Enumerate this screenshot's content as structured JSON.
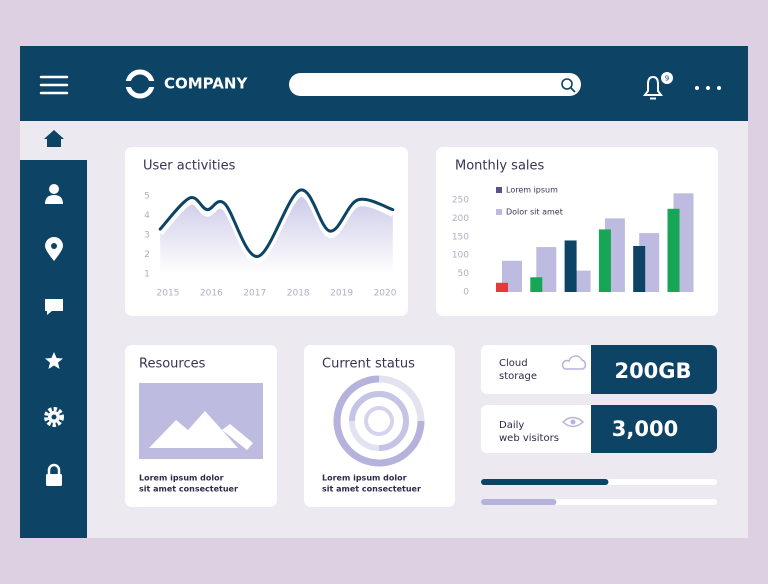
{
  "header": {
    "company": "COMPANY",
    "notifications": "9"
  },
  "user_activities": {
    "type": "line",
    "title": "User activities",
    "color": "#0d4466",
    "x": [
      2014.82,
      2015.5,
      2015.9,
      2016.31,
      2017.07,
      2018.04,
      2018.73,
      2019.37,
      2020.18
    ],
    "values": [
      3.3,
      4.9,
      4.3,
      4.6,
      1.9,
      5.3,
      3.2,
      4.8,
      4.3
    ],
    "xlim": [
      2014.8,
      2020.2
    ],
    "xticks": [
      2015,
      2016,
      2017,
      2018,
      2019,
      2020
    ],
    "ylim": [
      1,
      5
    ],
    "yticks": [
      1,
      2,
      3,
      4,
      5
    ]
  },
  "monthly_sales": {
    "type": "bar",
    "title": "Monthly sales",
    "categories": [
      null,
      null,
      null,
      null,
      null,
      null
    ],
    "series": [
      {
        "name": "Lorem ipsum",
        "color": "#5d4f8a",
        "colors": [
          "#e63a3a",
          "#17a556",
          "#0d4466",
          "#17a556",
          "#0d4466",
          "#17a556"
        ],
        "values": [
          25,
          40,
          140,
          170,
          125,
          226
        ]
      },
      {
        "name": "Dolor sit amet",
        "color": "#bdbbe0",
        "values": [
          85,
          122,
          58,
          200,
          160,
          268
        ]
      }
    ],
    "ylim": [
      0,
      270
    ],
    "yticks": [
      0,
      50,
      100,
      150,
      200,
      250
    ]
  },
  "resources": {
    "title": "Resources",
    "caption": [
      "Lorem ipsum dolor",
      "sit amet consectetuer"
    ]
  },
  "current_status": {
    "title": "Current status",
    "caption": [
      "Lorem ipsum dolor",
      "sit amet consectetuer"
    ]
  },
  "stats": [
    {
      "label": [
        "Cloud",
        "storage"
      ],
      "value": "200GB"
    },
    {
      "label": [
        "Daily",
        "web visitors"
      ],
      "value": "3,000"
    }
  ],
  "progress": {
    "values": [
      54,
      32
    ],
    "colors": [
      "#0d4466",
      "#b5b3dc"
    ],
    "xlim": [
      0,
      100
    ]
  }
}
